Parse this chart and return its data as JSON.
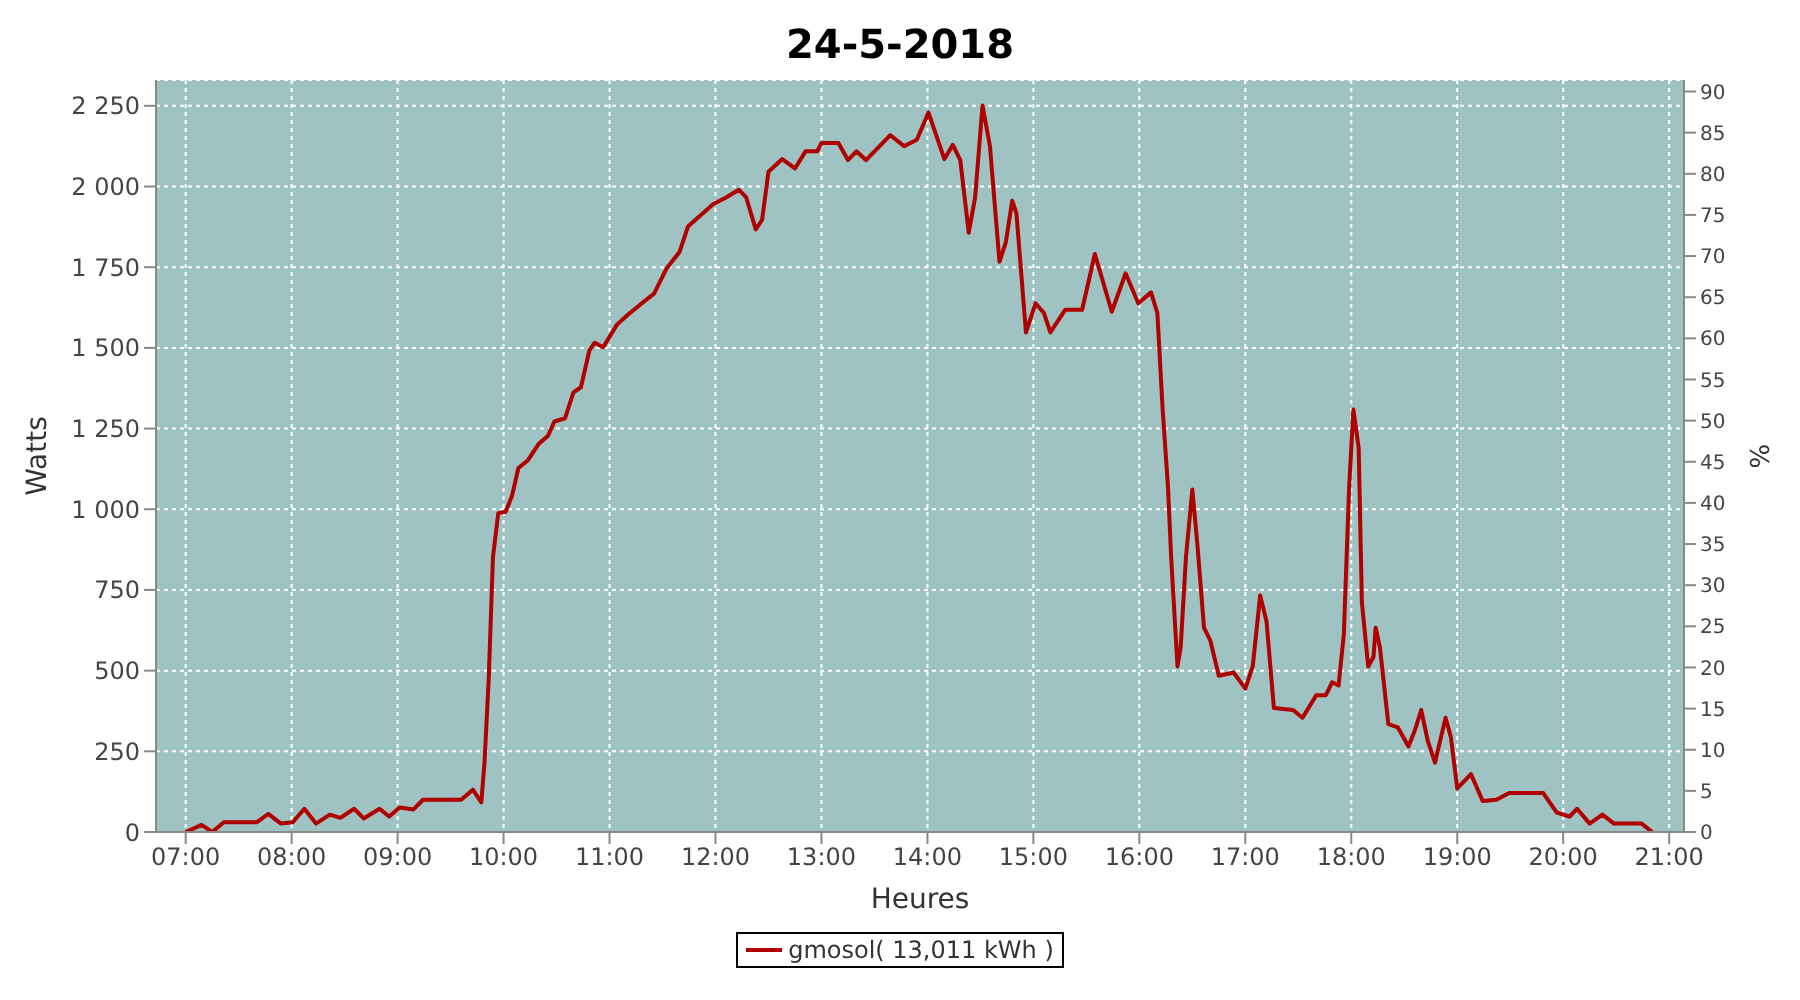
{
  "chart_data": {
    "type": "line",
    "title": "24-5-2018",
    "xlabel": "Heures",
    "ylabel": "Watts",
    "y2label": "%",
    "x": [
      7.0,
      7.15,
      7.25,
      7.36,
      7.67,
      7.78,
      7.9,
      8.01,
      8.12,
      8.23,
      8.36,
      8.46,
      8.59,
      8.68,
      8.83,
      8.92,
      9.02,
      9.15,
      9.24,
      9.6,
      9.71,
      9.79,
      9.82,
      9.86,
      9.9,
      9.95,
      10.02,
      10.08,
      10.14,
      10.23,
      10.33,
      10.42,
      10.48,
      10.58,
      10.66,
      10.73,
      10.81,
      10.86,
      10.94,
      11.07,
      11.17,
      11.32,
      11.42,
      11.54,
      11.66,
      11.74,
      11.98,
      12.1,
      12.22,
      12.29,
      12.38,
      12.44,
      12.5,
      12.63,
      12.75,
      12.85,
      12.96,
      13.0,
      13.16,
      13.25,
      13.33,
      13.42,
      13.65,
      13.78,
      13.9,
      14.01,
      14.16,
      14.24,
      14.31,
      14.39,
      14.45,
      14.52,
      14.59,
      14.68,
      14.74,
      14.8,
      14.84,
      14.93,
      15.02,
      15.1,
      15.16,
      15.3,
      15.46,
      15.58,
      15.74,
      15.87,
      15.99,
      16.11,
      16.17,
      16.22,
      16.27,
      16.3,
      16.36,
      16.39,
      16.44,
      16.5,
      16.55,
      16.61,
      16.67,
      16.75,
      16.89,
      17.0,
      17.07,
      17.14,
      17.2,
      17.27,
      17.45,
      17.54,
      17.67,
      17.76,
      17.82,
      17.88,
      17.93,
      17.98,
      18.02,
      18.07,
      18.1,
      18.16,
      18.21,
      18.23,
      18.27,
      18.35,
      18.44,
      18.54,
      18.6,
      18.66,
      18.72,
      18.79,
      18.89,
      18.94,
      19.0,
      19.13,
      19.24,
      19.37,
      19.49,
      19.81,
      19.94,
      20.06,
      20.13,
      20.25,
      20.37,
      20.48,
      20.74,
      20.84
    ],
    "series": [
      {
        "name": "gmosol( 13,011 kWh )",
        "color": "#b00000",
        "values": [
          0,
          22,
          0,
          30,
          30,
          56,
          26,
          30,
          72,
          26,
          54,
          44,
          72,
          42,
          72,
          48,
          76,
          70,
          100,
          100,
          131,
          92,
          214,
          474,
          852,
          988,
          992,
          1042,
          1128,
          1152,
          1202,
          1228,
          1272,
          1282,
          1362,
          1378,
          1492,
          1516,
          1502,
          1572,
          1602,
          1642,
          1668,
          1747,
          1797,
          1876,
          1946,
          1966,
          1990,
          1966,
          1867,
          1897,
          2046,
          2085,
          2056,
          2109,
          2109,
          2135,
          2135,
          2082,
          2109,
          2082,
          2159,
          2125,
          2145,
          2229,
          2085,
          2129,
          2082,
          1857,
          1966,
          2251,
          2125,
          1767,
          1827,
          1956,
          1917,
          1548,
          1638,
          1608,
          1548,
          1618,
          1618,
          1791,
          1612,
          1731,
          1638,
          1672,
          1608,
          1309,
          1070,
          852,
          513,
          573,
          852,
          1061,
          882,
          633,
          593,
          484,
          494,
          444,
          513,
          733,
          653,
          384,
          378,
          354,
          424,
          424,
          464,
          454,
          613,
          1070,
          1309,
          1190,
          712,
          513,
          543,
          633,
          573,
          334,
          324,
          265,
          315,
          378,
          285,
          215,
          354,
          294,
          135,
          179,
          96,
          100,
          121,
          121,
          60,
          48,
          72,
          26,
          54,
          26,
          26,
          0
        ]
      }
    ],
    "xlim": [
      6.72,
      21.14
    ],
    "xticks": [
      {
        "value": 7,
        "label": "07:00"
      },
      {
        "value": 8,
        "label": "08:00"
      },
      {
        "value": 9,
        "label": "09:00"
      },
      {
        "value": 10,
        "label": "10:00"
      },
      {
        "value": 11,
        "label": "11:00"
      },
      {
        "value": 12,
        "label": "12:00"
      },
      {
        "value": 13,
        "label": "13:00"
      },
      {
        "value": 14,
        "label": "14:00"
      },
      {
        "value": 15,
        "label": "15:00"
      },
      {
        "value": 16,
        "label": "16:00"
      },
      {
        "value": 17,
        "label": "17:00"
      },
      {
        "value": 18,
        "label": "18:00"
      },
      {
        "value": 19,
        "label": "19:00"
      },
      {
        "value": 20,
        "label": "20:00"
      },
      {
        "value": 21,
        "label": "21:00"
      }
    ],
    "ylim": [
      0,
      2330
    ],
    "yticks": [
      0,
      250,
      500,
      750,
      {
        "value": 1000,
        "label": "1 000"
      },
      {
        "value": 1250,
        "label": "1 250"
      },
      {
        "value": 1500,
        "label": "1 500"
      },
      {
        "value": 1750,
        "label": "1 750"
      },
      {
        "value": 2000,
        "label": "2 000"
      },
      {
        "value": 2250,
        "label": "2 250"
      }
    ],
    "y2lim": [
      0,
      91.4
    ],
    "y2ticks": [
      0,
      5,
      10,
      15,
      20,
      25,
      30,
      35,
      40,
      45,
      50,
      55,
      60,
      65,
      70,
      75,
      80,
      85,
      90
    ],
    "grid": true,
    "legend": "bottom",
    "marker": "none",
    "line_style": "solid"
  }
}
